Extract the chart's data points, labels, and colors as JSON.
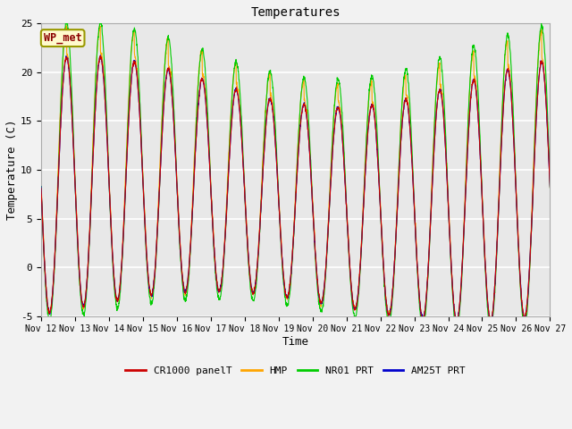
{
  "title": "Temperatures",
  "xlabel": "Time",
  "ylabel": "Temperature (C)",
  "ylim": [
    -5,
    25
  ],
  "annotation_text": "WP_met",
  "annotation_color": "#8B0000",
  "annotation_bg": "#FFFACD",
  "legend_entries": [
    "CR1000 panelT",
    "HMP",
    "NR01 PRT",
    "AM25T PRT"
  ],
  "line_colors": [
    "#CC0000",
    "#FFA500",
    "#00CC00",
    "#0000CC"
  ],
  "fig_facecolor": "#F2F2F2",
  "ax_facecolor": "#E8E8E8",
  "num_days": 15,
  "samples_per_day": 144,
  "start_day": 12
}
